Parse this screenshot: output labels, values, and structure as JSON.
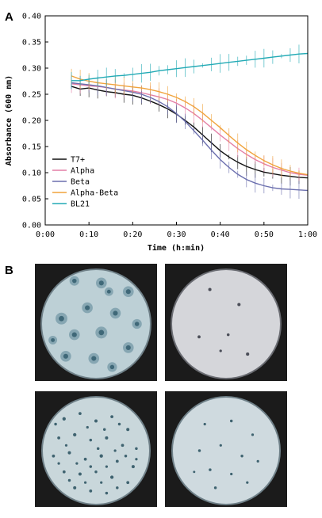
{
  "panels": {
    "a_label": "A",
    "b_label": "B"
  },
  "chart_data": {
    "type": "line",
    "xlabel": "Time (h:min)",
    "ylabel": "Absorbance (600 nm)",
    "xlim": [
      0,
      60
    ],
    "ylim": [
      0,
      0.4
    ],
    "x_ticks": [
      0,
      10,
      20,
      30,
      40,
      50,
      60
    ],
    "x_tick_labels": [
      "0:00",
      "0:10",
      "0:20",
      "0:30",
      "0:40",
      "0:50",
      "1:00"
    ],
    "y_ticks": [
      0,
      0.05,
      0.1,
      0.15,
      0.2,
      0.25,
      0.3,
      0.35,
      0.4
    ],
    "y_tick_labels": [
      "0.00",
      "0.05",
      "0.10",
      "0.15",
      "0.20",
      "0.25",
      "0.30",
      "0.35",
      "0.40"
    ],
    "grid": false,
    "legend_position": "bottom-left",
    "x": [
      6,
      8,
      10,
      12,
      14,
      16,
      18,
      20,
      22,
      24,
      26,
      28,
      30,
      32,
      34,
      36,
      38,
      40,
      42,
      44,
      46,
      48,
      50,
      52,
      54,
      56,
      58,
      60
    ],
    "series": [
      {
        "name": "T7+",
        "color": "#111111",
        "values": [
          0.265,
          0.26,
          0.262,
          0.258,
          0.255,
          0.253,
          0.25,
          0.248,
          0.243,
          0.237,
          0.23,
          0.222,
          0.212,
          0.2,
          0.187,
          0.172,
          0.157,
          0.142,
          0.13,
          0.12,
          0.112,
          0.106,
          0.101,
          0.098,
          0.095,
          0.093,
          0.091,
          0.09
        ]
      },
      {
        "name": "Alpha",
        "color": "#e47fa6",
        "values": [
          0.27,
          0.268,
          0.266,
          0.265,
          0.263,
          0.26,
          0.258,
          0.256,
          0.253,
          0.249,
          0.245,
          0.24,
          0.233,
          0.224,
          0.213,
          0.2,
          0.186,
          0.172,
          0.159,
          0.146,
          0.135,
          0.125,
          0.117,
          0.11,
          0.105,
          0.1,
          0.097,
          0.095
        ]
      },
      {
        "name": "Beta",
        "color": "#6b6fae",
        "values": [
          0.272,
          0.27,
          0.268,
          0.266,
          0.263,
          0.26,
          0.257,
          0.254,
          0.25,
          0.244,
          0.236,
          0.226,
          0.213,
          0.198,
          0.18,
          0.162,
          0.143,
          0.125,
          0.11,
          0.097,
          0.087,
          0.08,
          0.075,
          0.071,
          0.069,
          0.068,
          0.067,
          0.066
        ]
      },
      {
        "name": "Alpha-Beta",
        "color": "#f0a33c",
        "values": [
          0.285,
          0.279,
          0.275,
          0.272,
          0.27,
          0.268,
          0.266,
          0.264,
          0.262,
          0.259,
          0.255,
          0.25,
          0.244,
          0.236,
          0.226,
          0.214,
          0.2,
          0.186,
          0.171,
          0.157,
          0.144,
          0.133,
          0.123,
          0.115,
          0.108,
          0.103,
          0.099,
          0.096
        ]
      },
      {
        "name": "BL21",
        "color": "#22aab5",
        "values": [
          0.276,
          0.276,
          0.279,
          0.281,
          0.283,
          0.285,
          0.286,
          0.288,
          0.29,
          0.292,
          0.295,
          0.297,
          0.299,
          0.301,
          0.303,
          0.305,
          0.307,
          0.309,
          0.311,
          0.313,
          0.315,
          0.317,
          0.319,
          0.321,
          0.323,
          0.325,
          0.327,
          0.328
        ]
      }
    ]
  },
  "plates": [
    {
      "name": "plate-t7",
      "dish": "#bdd0d6",
      "edge": "#6f8088",
      "colony": "#3f6878",
      "halo": "#86a6b2",
      "colonies": [
        [
          0.12,
          0.22,
          0.05
        ],
        [
          0.3,
          0.1,
          0.045
        ],
        [
          0.55,
          0.12,
          0.05
        ],
        [
          0.8,
          0.2,
          0.05
        ],
        [
          0.18,
          0.45,
          0.055
        ],
        [
          0.42,
          0.35,
          0.05
        ],
        [
          0.68,
          0.4,
          0.05
        ],
        [
          0.88,
          0.5,
          0.045
        ],
        [
          0.3,
          0.6,
          0.05
        ],
        [
          0.55,
          0.58,
          0.055
        ],
        [
          0.8,
          0.72,
          0.05
        ],
        [
          0.22,
          0.8,
          0.05
        ],
        [
          0.48,
          0.82,
          0.05
        ],
        [
          0.65,
          0.9,
          0.045
        ],
        [
          0.1,
          0.65,
          0.04
        ],
        [
          0.62,
          0.2,
          0.04
        ]
      ]
    },
    {
      "name": "plate-alpha",
      "dish": "#d5d6da",
      "edge": "#6a6c72",
      "colony": "#4b4e58",
      "halo": "#d5d6da",
      "colonies": [
        [
          0.35,
          0.18,
          0.015
        ],
        [
          0.62,
          0.32,
          0.015
        ],
        [
          0.25,
          0.62,
          0.014
        ],
        [
          0.52,
          0.6,
          0.013
        ],
        [
          0.7,
          0.78,
          0.015
        ],
        [
          0.45,
          0.75,
          0.012
        ]
      ]
    },
    {
      "name": "plate-beta",
      "dish": "#c9d7db",
      "edge": "#6f8088",
      "colony": "#3f6370",
      "halo": "#c9d7db",
      "colonies": [
        [
          0.2,
          0.2,
          0.016
        ],
        [
          0.35,
          0.15,
          0.014
        ],
        [
          0.5,
          0.22,
          0.015
        ],
        [
          0.65,
          0.18,
          0.014
        ],
        [
          0.8,
          0.3,
          0.015
        ],
        [
          0.15,
          0.38,
          0.014
        ],
        [
          0.3,
          0.35,
          0.016
        ],
        [
          0.45,
          0.4,
          0.013
        ],
        [
          0.6,
          0.38,
          0.015
        ],
        [
          0.75,
          0.45,
          0.014
        ],
        [
          0.88,
          0.48,
          0.013
        ],
        [
          0.1,
          0.55,
          0.014
        ],
        [
          0.25,
          0.52,
          0.015
        ],
        [
          0.4,
          0.58,
          0.014
        ],
        [
          0.55,
          0.55,
          0.016
        ],
        [
          0.7,
          0.6,
          0.014
        ],
        [
          0.85,
          0.65,
          0.015
        ],
        [
          0.2,
          0.7,
          0.014
        ],
        [
          0.35,
          0.72,
          0.015
        ],
        [
          0.5,
          0.7,
          0.013
        ],
        [
          0.65,
          0.75,
          0.016
        ],
        [
          0.8,
          0.8,
          0.014
        ],
        [
          0.3,
          0.85,
          0.015
        ],
        [
          0.45,
          0.88,
          0.014
        ],
        [
          0.6,
          0.9,
          0.013
        ],
        [
          0.12,
          0.25,
          0.013
        ],
        [
          0.58,
          0.3,
          0.013
        ],
        [
          0.42,
          0.28,
          0.012
        ],
        [
          0.72,
          0.25,
          0.013
        ],
        [
          0.22,
          0.45,
          0.012
        ],
        [
          0.52,
          0.48,
          0.013
        ],
        [
          0.68,
          0.5,
          0.012
        ],
        [
          0.32,
          0.62,
          0.012
        ],
        [
          0.78,
          0.55,
          0.013
        ],
        [
          0.15,
          0.62,
          0.012
        ],
        [
          0.45,
          0.65,
          0.013
        ],
        [
          0.6,
          0.65,
          0.012
        ],
        [
          0.88,
          0.58,
          0.012
        ],
        [
          0.25,
          0.78,
          0.013
        ],
        [
          0.55,
          0.8,
          0.012
        ],
        [
          0.7,
          0.85,
          0.013
        ],
        [
          0.4,
          0.8,
          0.012
        ]
      ]
    },
    {
      "name": "plate-alpha-beta",
      "dish": "#cfdadf",
      "edge": "#6f8088",
      "colony": "#3f6370",
      "halo": "#cfdadf",
      "colonies": [
        [
          0.3,
          0.25,
          0.012
        ],
        [
          0.55,
          0.22,
          0.013
        ],
        [
          0.75,
          0.35,
          0.012
        ],
        [
          0.25,
          0.5,
          0.013
        ],
        [
          0.45,
          0.45,
          0.012
        ],
        [
          0.65,
          0.55,
          0.013
        ],
        [
          0.8,
          0.6,
          0.012
        ],
        [
          0.35,
          0.68,
          0.013
        ],
        [
          0.55,
          0.72,
          0.012
        ],
        [
          0.4,
          0.85,
          0.013
        ],
        [
          0.7,
          0.8,
          0.012
        ],
        [
          0.2,
          0.7,
          0.011
        ]
      ]
    }
  ]
}
